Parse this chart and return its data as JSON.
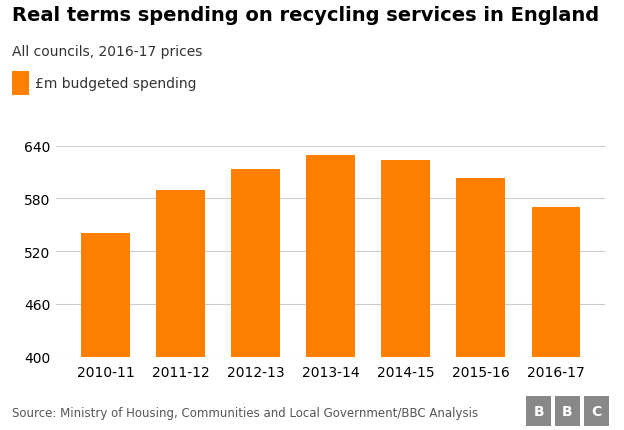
{
  "title": "Real terms spending on recycling services in England",
  "subtitle": "All councils, 2016-17 prices",
  "legend_label": "£m budgeted spending",
  "source": "Source: Ministry of Housing, Communities and Local Government/BBC Analysis",
  "categories": [
    "2010-11",
    "2011-12",
    "2012-13",
    "2013-14",
    "2014-15",
    "2015-16",
    "2016-17"
  ],
  "values": [
    541,
    590,
    613,
    629,
    624,
    603,
    570
  ],
  "bar_color": "#FF8000",
  "ylim": [
    400,
    645
  ],
  "yticks": [
    400,
    460,
    520,
    580,
    640
  ],
  "background_color": "#ffffff",
  "grid_color": "#cccccc",
  "title_fontsize": 14,
  "subtitle_fontsize": 10,
  "tick_fontsize": 10,
  "legend_fontsize": 10,
  "source_fontsize": 8.5,
  "bbc_color": "#888888"
}
